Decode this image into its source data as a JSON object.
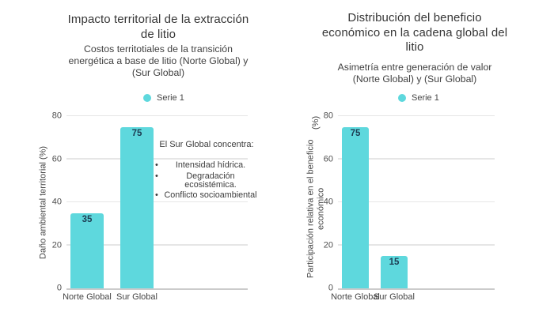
{
  "colors": {
    "series": "#5ed8dd",
    "grid": "#e6e6e6",
    "axis": "#cbcbcb",
    "value_label": "#1c3c52"
  },
  "chart_data": [
    {
      "type": "bar",
      "title": "Impacto territorial de la extracción de litio",
      "title_lines": [
        "Impacto territorial de la extracción",
        "de litio"
      ],
      "subtitle": "Costos territotiales de la transición energética a base de litio (Norte Global) y (Sur Global)",
      "subtitle_lines": [
        "Costos territotiales de la transición",
        "energética a base de litio (Norte Global) y",
        "(Sur Global)"
      ],
      "legend": [
        "Serie 1"
      ],
      "legend_position": "top",
      "categories": [
        "Norte Global",
        "Sur Global"
      ],
      "values": [
        35,
        75
      ],
      "xlabel": "",
      "ylabel": "Daño ambiental territorial (%)",
      "ylabel_lines": [
        "Daño ambiental territorial (%)"
      ],
      "ylim": [
        0,
        80
      ],
      "yticks": [
        0,
        20,
        40,
        60,
        80
      ],
      "grid": true,
      "annotation": {
        "header": "El Sur Global concentra:",
        "bullets": [
          "Intensidad hídrica.",
          "Degradación ecosistémica.",
          "Conflicto socioambiental"
        ]
      }
    },
    {
      "type": "bar",
      "title": "Distribución del beneficio económico en la cadena global del litio",
      "title_lines": [
        "Distribución del beneficio",
        "económico en la cadena global del",
        "litio"
      ],
      "subtitle": "Asimetría entre generación de valor (Norte Global) y (Sur Global)",
      "subtitle_lines": [
        "Asimetría entre generación de valor",
        "(Norte Global) y (Sur Global)"
      ],
      "legend": [
        "Serie 1"
      ],
      "legend_position": "top",
      "categories": [
        "Norte Global",
        "Sur Global"
      ],
      "values": [
        75,
        15
      ],
      "xlabel": "",
      "ylabel": "Participación relativa en el beneficio económico (%)",
      "ylabel_lines": [
        "Participación relativa en el beneficio económico",
        "(%)"
      ],
      "ylim": [
        0,
        80
      ],
      "yticks": [
        0,
        20,
        40,
        60,
        80
      ],
      "grid": true
    }
  ]
}
